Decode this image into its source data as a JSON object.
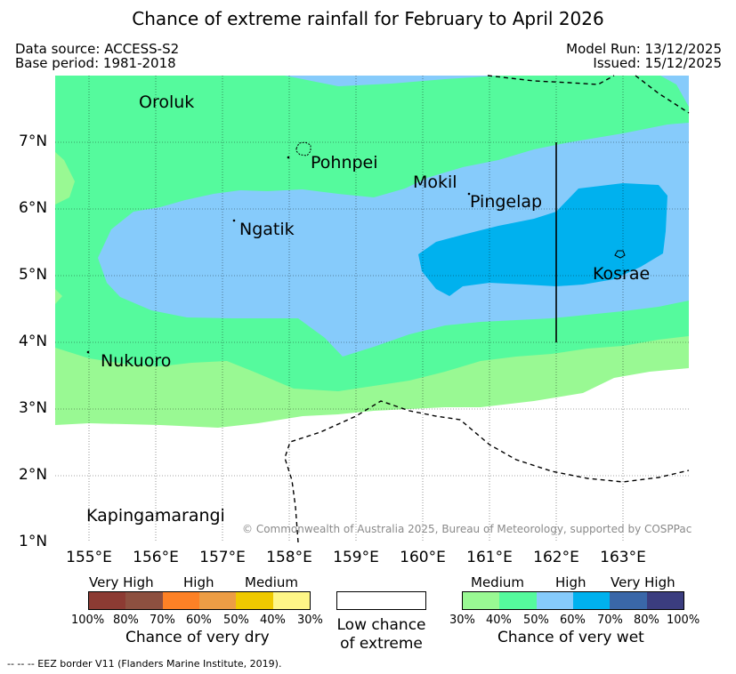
{
  "title": "Chance of extreme rainfall for February to April 2026",
  "meta": {
    "data_source": "Data source: ACCESS-S2",
    "base_period": "Base period: 1981-2018",
    "model_run": "Model Run: 13/12/2025",
    "issued": "Issued: 15/12/2025"
  },
  "map": {
    "lat_labels": [
      "7°N",
      "6°N",
      "5°N",
      "4°N",
      "3°N",
      "2°N",
      "1°N"
    ],
    "lon_labels": [
      "155°E",
      "156°E",
      "157°E",
      "158°E",
      "159°E",
      "160°E",
      "161°E",
      "162°E",
      "163°E"
    ],
    "places": {
      "oroluk": "Oroluk",
      "pohnpei": "Pohnpei",
      "mokil": "Mokil",
      "pingelap": "Pingelap",
      "ngatik": "Ngatik",
      "kosrae": "Kosrae",
      "nukuoro": "Nukuoro",
      "kapingamarangi": "Kapingamarangi"
    },
    "copyright": "© Commonwealth of Australia 2025, Bureau of Meteorology, supported by COSPPac"
  },
  "colors": {
    "wet_medium_30": "#99f993",
    "wet_medium_40": "#55fa9d",
    "wet_high_50": "#86cbfb",
    "wet_high_60": "#00b1ee",
    "wet_vhigh_70": "#3a67a8",
    "wet_vhigh_80": "#3b3d7f",
    "dry_vhigh_100": "#8c3b33",
    "dry_vhigh_80": "#8d5040",
    "dry_high_70": "#fd8126",
    "dry_high_60": "#ec9d45",
    "dry_med_50": "#efc900",
    "dry_med_40": "#fef687"
  },
  "legend": {
    "dry": {
      "groups": [
        "Very High",
        "High",
        "Medium"
      ],
      "ticks": [
        "100%",
        "80%",
        "70%",
        "60%",
        "50%",
        "40%",
        "30%"
      ],
      "caption": "Chance of very dry"
    },
    "low": {
      "caption_line1": "Low chance",
      "caption_line2": "of extreme"
    },
    "wet": {
      "groups": [
        "Medium",
        "High",
        "Very High"
      ],
      "ticks": [
        "30%",
        "40%",
        "50%",
        "60%",
        "70%",
        "80%",
        "100%"
      ],
      "caption": "Chance of very wet"
    }
  },
  "footnote": "--  --  -- EEZ border V11 (Flanders Marine Institute, 2019)."
}
